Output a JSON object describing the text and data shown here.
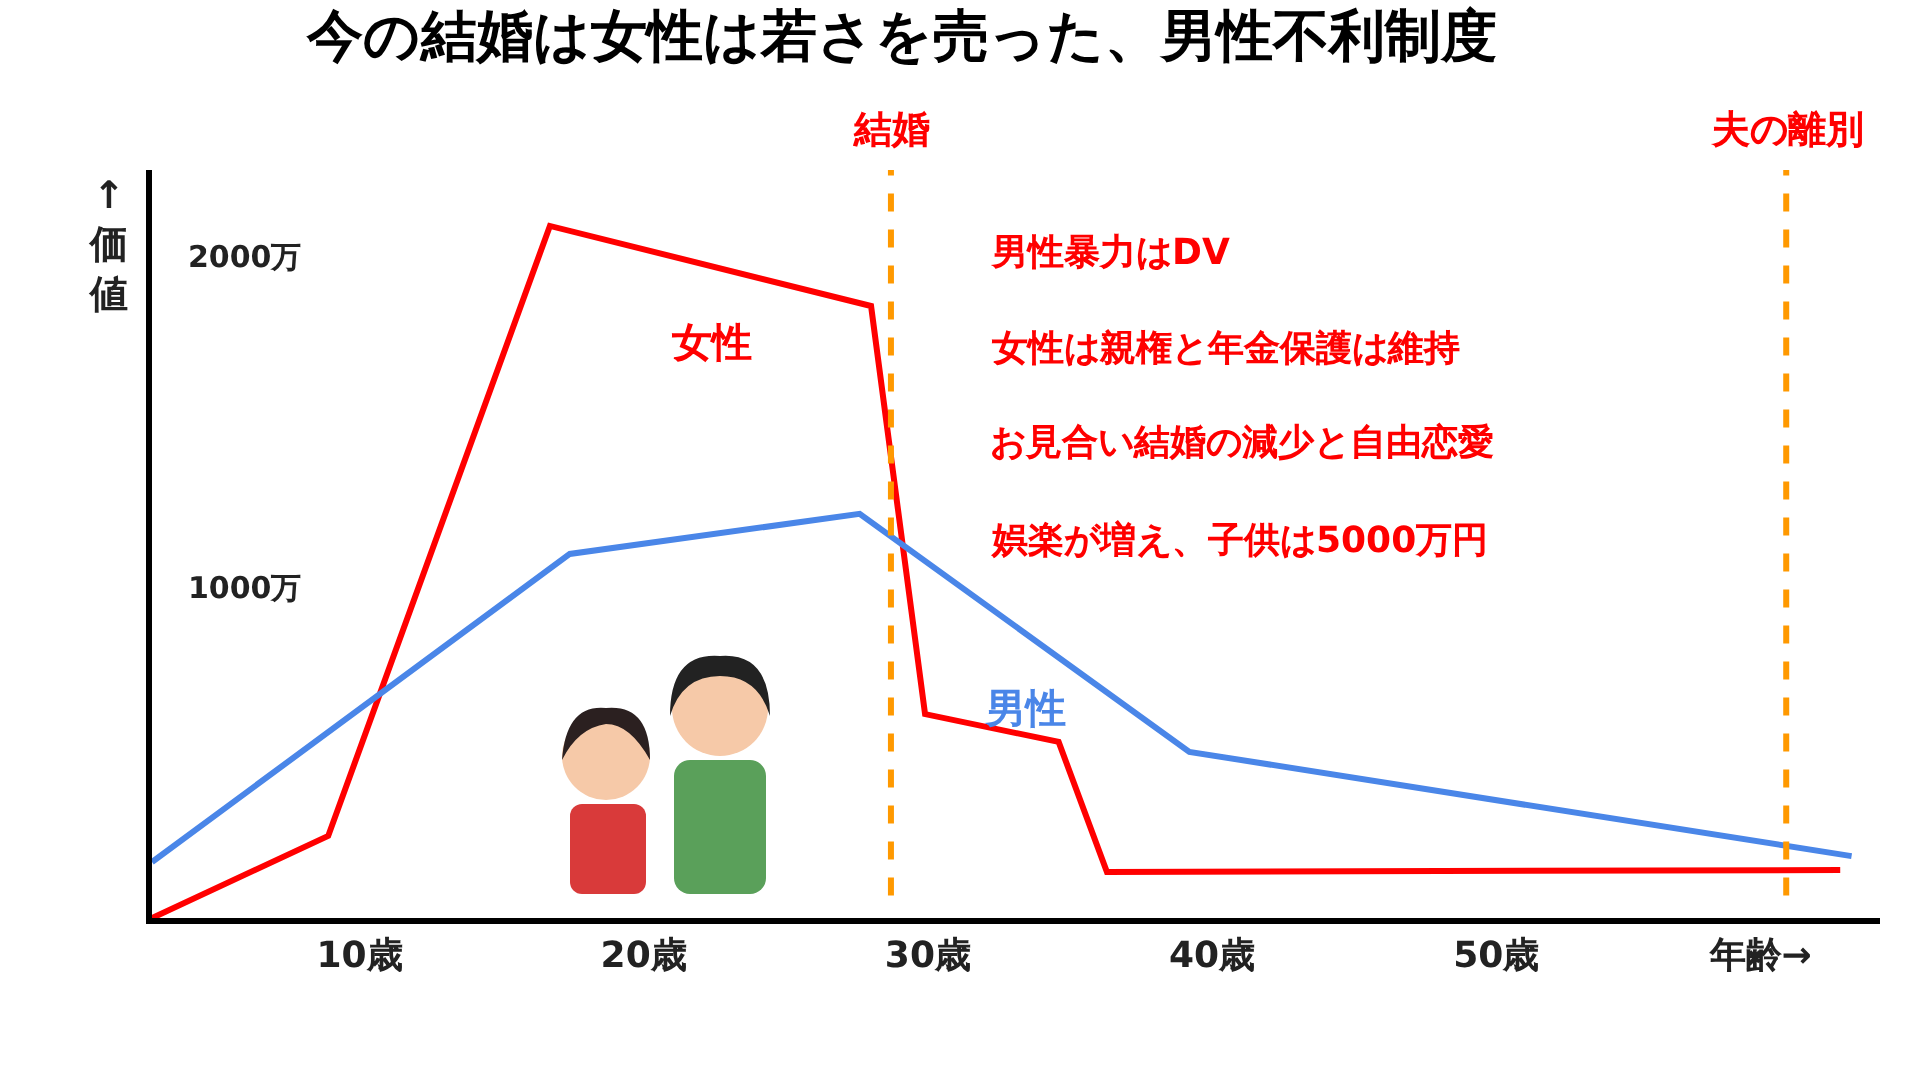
{
  "chart_data": {
    "type": "line",
    "title": "今の結婚は女性は若さを売った、男性不利制度",
    "ylabel": "↑価値",
    "xlim": [
      2.7,
      63.5
    ],
    "xticks": [
      {
        "value": 10,
        "label": "10歳"
      },
      {
        "value": 20,
        "label": "20歳"
      },
      {
        "value": 30,
        "label": "30歳"
      },
      {
        "value": 40,
        "label": "40歳"
      },
      {
        "value": 50,
        "label": "50歳"
      },
      {
        "value": 59.3,
        "label": "年齢→"
      }
    ],
    "ylim": [
      0,
      2260
    ],
    "yticks": [
      {
        "value": 1000,
        "label": "1000万"
      },
      {
        "value": 2000,
        "label": "2000万"
      }
    ],
    "series": [
      {
        "name": "女性",
        "color": "#ff0000",
        "x": [
          2.7,
          8.9,
          16.7,
          28.0,
          29.9,
          34.6,
          36.3,
          62.1
        ],
        "values": [
          0,
          248,
          2091,
          1849,
          616,
          532,
          139,
          145
        ]
      },
      {
        "name": "男性",
        "color": "#4a86e8",
        "x": [
          2.7,
          17.4,
          27.6,
          39.2,
          62.5
        ],
        "values": [
          169,
          1100,
          1221,
          502,
          187
        ]
      }
    ],
    "ref_lines": [
      {
        "axis": "x",
        "value": 28.7,
        "label": "結婚",
        "color": "#ff9900",
        "line_style": "dashed"
      },
      {
        "axis": "x",
        "value": 60.2,
        "label": "夫の離別",
        "color": "#ff9900",
        "line_style": "dashed"
      }
    ],
    "annotations": [
      "男性暴力はDV",
      "女性は親権と年金保護は維持",
      "お見合い結婚の減少と自由恋愛",
      "娯楽が増え、子供は5000万円"
    ],
    "grid": false,
    "legend": false,
    "marker": "none",
    "line_style": "solid"
  }
}
